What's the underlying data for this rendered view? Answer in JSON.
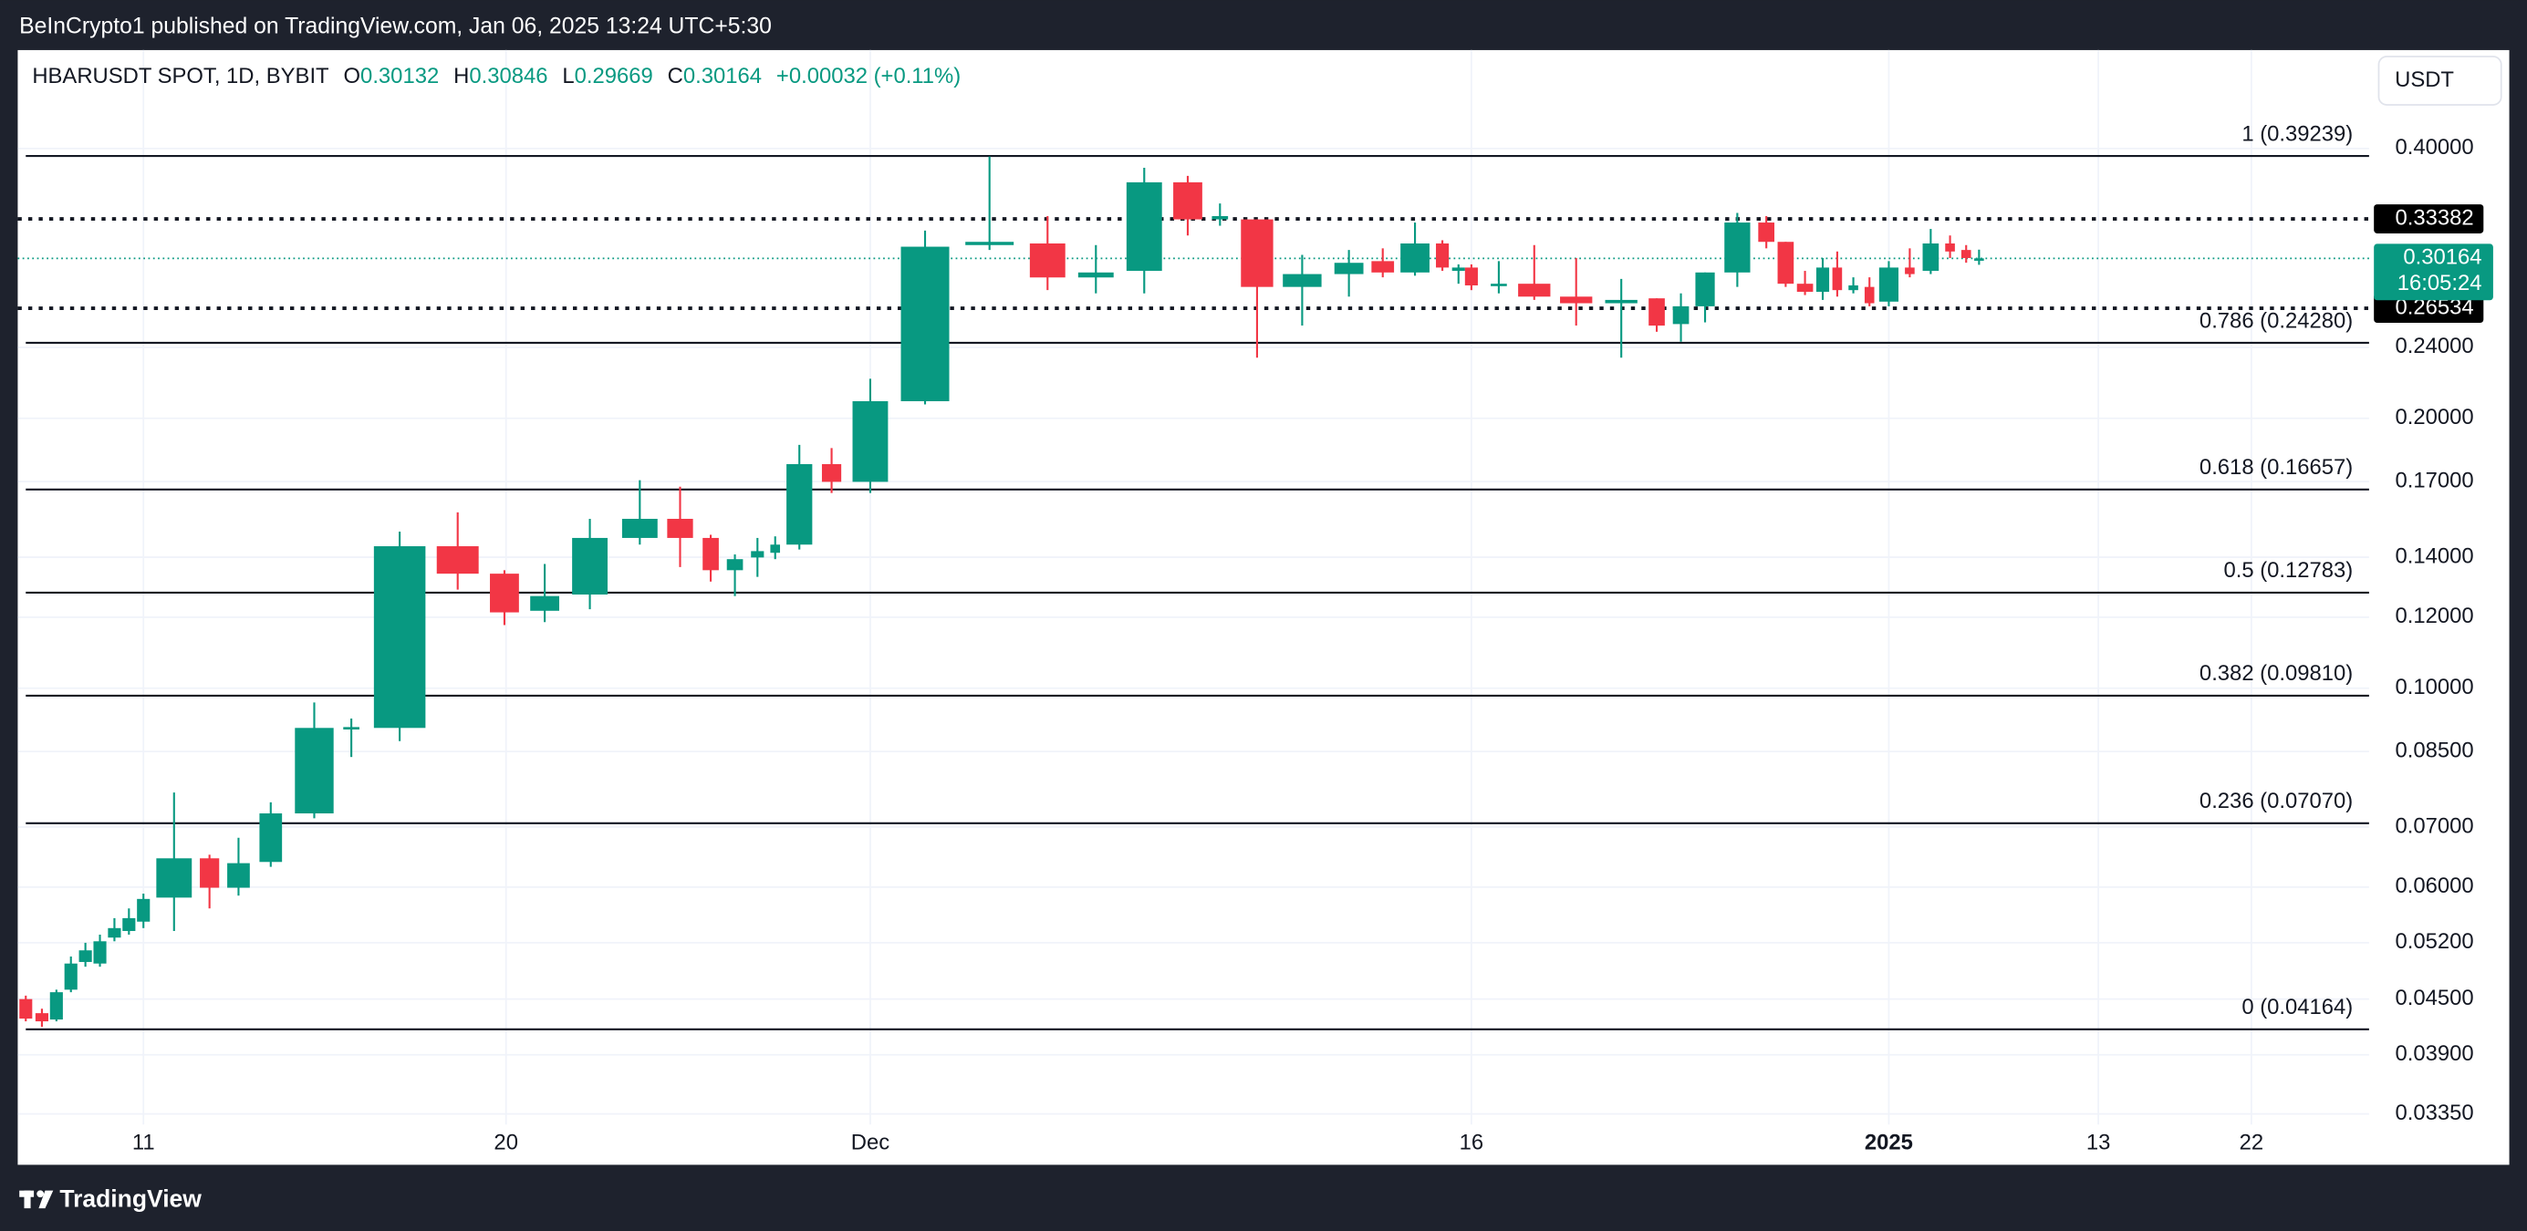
{
  "header": {
    "publisher": "BeInCrypto1 published on TradingView.com, Jan 06, 2025 13:24 UTC+5:30"
  },
  "footer": {
    "brand": "TradingView"
  },
  "chart_data": {
    "type": "candlestick",
    "log_scale": true,
    "grid": true,
    "legend": {
      "symbol": "HBARUSDT SPOT, 1D, BYBIT",
      "o": "O",
      "open": "0.30132",
      "h": "H",
      "high": "0.30846",
      "l": "L",
      "low": "0.29669",
      "c": "C",
      "close": "0.30164",
      "change": "+0.00032 (+0.11%)"
    },
    "currency": "USDT",
    "up_color": "#089981",
    "down_color": "#f23645",
    "categories": [
      null,
      null,
      null,
      null,
      null,
      null,
      null,
      null,
      null,
      null,
      null,
      null,
      null,
      null,
      null,
      null,
      null,
      null,
      null,
      null,
      null,
      null,
      null,
      null,
      null,
      null,
      null,
      null,
      null,
      null,
      null,
      null,
      null,
      null,
      null,
      null,
      null,
      null,
      null,
      null,
      null,
      null,
      null,
      null,
      null,
      null,
      null,
      null,
      null,
      null,
      null,
      null,
      null,
      null,
      null,
      null,
      null,
      null,
      null,
      null,
      null,
      null,
      null,
      null,
      null
    ],
    "open": [
      0.045,
      0.0434,
      0.0427,
      0.0461,
      0.0495,
      0.0493,
      0.0527,
      0.0536,
      0.0549,
      0.0584,
      0.0646,
      0.0599,
      0.064,
      0.0725,
      0.0903,
      0.0903,
      0.144,
      0.1342,
      0.122,
      0.1272,
      0.1471,
      0.1545,
      0.1471,
      0.1354,
      0.1399,
      0.1416,
      0.1446,
      0.1778,
      0.1699,
      0.209,
      0.3121,
      0.3134,
      0.2872,
      0.2921,
      0.3667,
      0.3334,
      0.3334,
      0.2803,
      0.2897,
      0.2995,
      0.2909,
      0.3134,
      0.2921,
      0.2946,
      0.2814,
      0.2826,
      0.2734,
      0.2688,
      0.2722,
      0.2548,
      0.2667,
      0.2909,
      0.3307,
      0.3147,
      0.2826,
      0.2768,
      0.2946,
      0.278,
      0.2803,
      0.2699,
      0.2946,
      0.2921,
      0.3134,
      0.3082,
      0.30132
    ],
    "high": [
      0.0454,
      0.0439,
      0.0461,
      0.0502,
      0.052,
      0.0531,
      0.0554,
      0.0568,
      0.059,
      0.0765,
      0.0652,
      0.0681,
      0.0746,
      0.0964,
      0.0925,
      0.1495,
      0.1571,
      0.1354,
      0.1376,
      0.1545,
      0.1706,
      0.1678,
      0.1483,
      0.141,
      0.1471,
      0.1477,
      0.1868,
      0.1853,
      0.2214,
      0.3239,
      0.3918,
      0.3362,
      0.3121,
      0.3806,
      0.3728,
      0.3473,
      0.3334,
      0.3044,
      0.3082,
      0.3095,
      0.3307,
      0.316,
      0.297,
      0.297,
      0.2995,
      0.3121,
      0.3019,
      0.2861,
      0.2722,
      0.2757,
      0.2909,
      0.339,
      0.3362,
      0.3147,
      0.2921,
      0.3019,
      0.307,
      0.2873,
      0.2873,
      0.2995,
      0.3095,
      0.3253,
      0.3199,
      0.3121,
      0.30846
    ],
    "low": [
      0.0425,
      0.0419,
      0.0425,
      0.0458,
      0.0489,
      0.0489,
      0.0522,
      0.0531,
      0.054,
      0.0536,
      0.0568,
      0.0587,
      0.0632,
      0.0716,
      0.0838,
      0.0873,
      0.1288,
      0.1176,
      0.1185,
      0.1225,
      0.1446,
      0.1365,
      0.1315,
      0.1267,
      0.1331,
      0.1393,
      0.1428,
      0.1651,
      0.1651,
      0.2073,
      0.3082,
      0.278,
      0.2757,
      0.2757,
      0.3199,
      0.328,
      0.2337,
      0.2538,
      0.2734,
      0.2873,
      0.2885,
      0.2921,
      0.2826,
      0.278,
      0.2757,
      0.2711,
      0.2538,
      0.2337,
      0.2498,
      0.2435,
      0.2559,
      0.2803,
      0.3095,
      0.2803,
      0.2745,
      0.2711,
      0.2734,
      0.2757,
      0.2667,
      0.2667,
      0.2873,
      0.2897,
      0.3019,
      0.2983,
      0.29669
    ],
    "close": [
      0.0428,
      0.0425,
      0.0458,
      0.0493,
      0.051,
      0.0522,
      0.054,
      0.0554,
      0.0582,
      0.0646,
      0.0599,
      0.0638,
      0.0725,
      0.0903,
      0.0905,
      0.144,
      0.1342,
      0.1215,
      0.1267,
      0.1471,
      0.1545,
      0.1471,
      0.1354,
      0.1393,
      0.1422,
      0.1446,
      0.1778,
      0.1699,
      0.209,
      0.3108,
      0.3147,
      0.2872,
      0.2909,
      0.3667,
      0.3334,
      0.3362,
      0.2803,
      0.2897,
      0.2982,
      0.2909,
      0.3134,
      0.2946,
      0.2946,
      0.2814,
      0.2826,
      0.2734,
      0.2688,
      0.2711,
      0.2538,
      0.2667,
      0.2909,
      0.3307,
      0.3147,
      0.2826,
      0.2768,
      0.2946,
      0.278,
      0.2814,
      0.2688,
      0.2946,
      0.2897,
      0.3134,
      0.307,
      0.3019,
      0.30164
    ],
    "xticks": [
      "11",
      "20",
      "Dec",
      "16",
      "2025",
      "13",
      "22"
    ],
    "ylim": [
      0.0294,
      0.515
    ],
    "yticks": [
      {
        "value": 0.4,
        "label": "0.40000"
      },
      {
        "value": 0.24,
        "label": "0.24000"
      },
      {
        "value": 0.2,
        "label": "0.20000"
      },
      {
        "value": 0.17,
        "label": "0.17000"
      },
      {
        "value": 0.14,
        "label": "0.14000"
      },
      {
        "value": 0.12,
        "label": "0.12000"
      },
      {
        "value": 0.1,
        "label": "0.10000"
      },
      {
        "value": 0.085,
        "label": "0.08500"
      },
      {
        "value": 0.07,
        "label": "0.07000"
      },
      {
        "value": 0.06,
        "label": "0.06000"
      },
      {
        "value": 0.052,
        "label": "0.05200"
      },
      {
        "value": 0.045,
        "label": "0.04500"
      },
      {
        "value": 0.039,
        "label": "0.03900"
      },
      {
        "value": 0.0335,
        "label": "0.03350"
      }
    ],
    "fib_levels": [
      {
        "value": 0.39239,
        "label": "1 (0.39239)"
      },
      {
        "value": 0.2428,
        "label": "0.786 (0.24280)"
      },
      {
        "value": 0.16657,
        "label": "0.618 (0.16657)"
      },
      {
        "value": 0.12783,
        "label": "0.5 (0.12783)"
      },
      {
        "value": 0.0981,
        "label": "0.382 (0.09810)"
      },
      {
        "value": 0.0707,
        "label": "0.236 (0.07070)"
      },
      {
        "value": 0.04164,
        "label": "0 (0.04164)"
      }
    ],
    "marked_levels": [
      0.33382,
      0.26534
    ],
    "last_price": 0.30164,
    "countdown": "16:05:24"
  }
}
